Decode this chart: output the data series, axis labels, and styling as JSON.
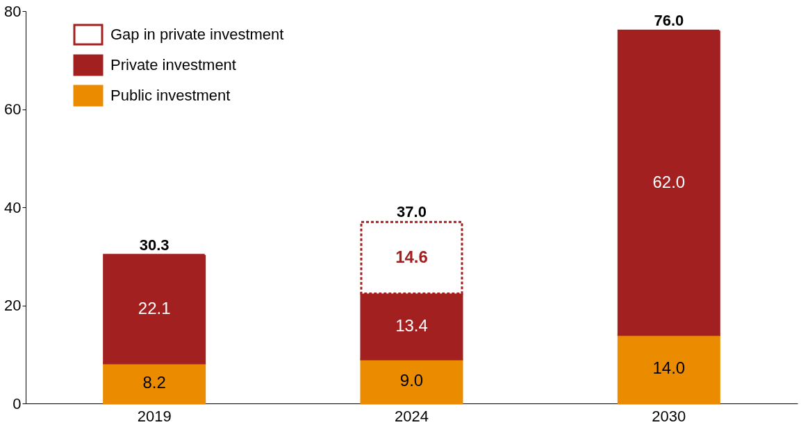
{
  "chart_data": {
    "type": "bar",
    "stacked": true,
    "categories": [
      "2019",
      "2024",
      "2030"
    ],
    "series": [
      {
        "name": "Public investment",
        "color": "#eb8c00",
        "values": [
          8.2,
          9.0,
          14.0
        ],
        "value_labels": [
          "8.2",
          "9.0",
          "14.0"
        ]
      },
      {
        "name": "Private investment",
        "color": "#a32020",
        "values": [
          22.1,
          13.4,
          62.0
        ],
        "value_labels": [
          "22.1",
          "13.4",
          "62.0"
        ]
      },
      {
        "name": "Gap in private investment",
        "color": "#a32020",
        "values": [
          null,
          14.6,
          null
        ],
        "value_labels": [
          null,
          "14.6",
          null
        ],
        "line_style": "dashed"
      }
    ],
    "totals": [
      "30.3",
      "37.0",
      "76.0"
    ],
    "ylim": [
      0,
      80
    ],
    "yticks": [
      0,
      20,
      40,
      60,
      80
    ],
    "grid": false,
    "legend": "top left"
  }
}
